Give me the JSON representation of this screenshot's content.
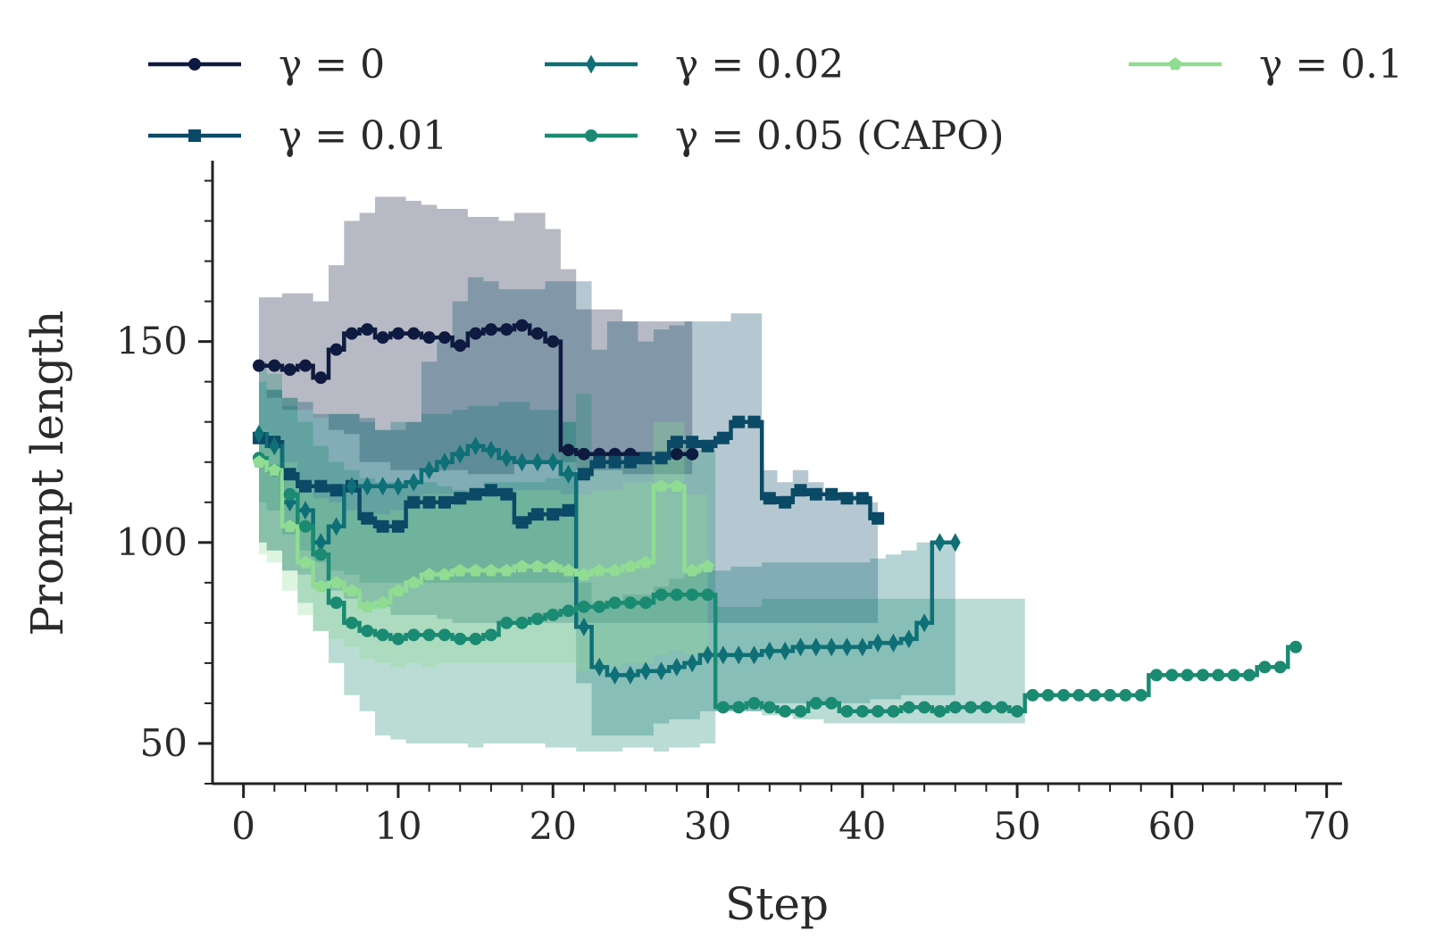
{
  "chart_data": {
    "type": "line",
    "xlabel": "Step",
    "ylabel": "Prompt length",
    "xlim": [
      -2,
      71
    ],
    "ylim": [
      40,
      195
    ],
    "xticks": [
      0,
      10,
      20,
      30,
      40,
      50,
      60,
      70
    ],
    "yticks": [
      50,
      100,
      150
    ],
    "grid": false,
    "legend_position": "top",
    "series": [
      {
        "name": "γ = 0",
        "color": "#0f1a40",
        "marker": "circle",
        "x": [
          1,
          2,
          3,
          4,
          5,
          6,
          7,
          8,
          9,
          10,
          11,
          12,
          13,
          14,
          15,
          16,
          17,
          18,
          19,
          20,
          21,
          22,
          23,
          24,
          25,
          26,
          27,
          28,
          29
        ],
        "y": [
          144,
          144,
          143,
          144,
          141,
          148,
          152,
          153,
          151,
          152,
          152,
          151,
          151,
          149,
          152,
          153,
          153,
          154,
          152,
          150,
          123,
          122,
          122,
          122,
          122,
          121,
          121,
          122,
          122
        ],
        "lower": [
          140,
          136,
          133,
          133,
          131,
          128,
          127,
          120,
          120,
          118,
          118,
          118,
          118,
          118,
          117,
          117,
          117,
          120,
          120,
          120,
          120,
          118,
          118,
          118,
          117,
          117,
          117,
          117,
          117
        ],
        "upper": [
          161,
          161,
          162,
          162,
          160,
          169,
          180,
          182,
          186,
          186,
          185,
          184,
          183,
          183,
          181,
          181,
          180,
          182,
          182,
          178,
          168,
          158,
          158,
          158,
          155,
          155,
          155,
          155,
          155
        ]
      },
      {
        "name": "γ = 0.01",
        "color": "#0b4a66",
        "marker": "square",
        "x": [
          1,
          2,
          3,
          4,
          5,
          6,
          7,
          8,
          9,
          10,
          11,
          12,
          13,
          14,
          15,
          16,
          17,
          18,
          19,
          20,
          21,
          22,
          23,
          24,
          25,
          26,
          27,
          28,
          29,
          30,
          31,
          32,
          33,
          34,
          35,
          36,
          37,
          38,
          39,
          40,
          41
        ],
        "y": [
          126,
          125,
          117,
          114,
          114,
          113,
          114,
          106,
          104,
          104,
          110,
          110,
          110,
          111,
          112,
          113,
          112,
          105,
          107,
          107,
          108,
          117,
          120,
          120,
          120,
          121,
          121,
          125,
          125,
          124,
          126,
          130,
          130,
          111,
          110,
          113,
          112,
          112,
          111,
          111,
          106
        ],
        "lower": [
          100,
          98,
          93,
          92,
          90,
          88,
          86,
          85,
          84,
          82,
          82,
          82,
          81,
          80,
          80,
          80,
          80,
          80,
          80,
          80,
          80,
          80,
          80,
          80,
          80,
          80,
          80,
          80,
          80,
          80,
          80,
          80,
          80,
          80,
          80,
          80,
          80,
          80,
          80,
          80,
          80
        ],
        "upper": [
          140,
          138,
          136,
          135,
          132,
          132,
          132,
          131,
          128,
          128,
          130,
          145,
          150,
          160,
          166,
          165,
          163,
          163,
          163,
          165,
          165,
          165,
          148,
          155,
          155,
          150,
          153,
          154,
          155,
          155,
          155,
          157,
          157,
          118,
          115,
          118,
          115,
          112,
          112,
          112,
          110
        ]
      },
      {
        "name": "γ = 0.02",
        "color": "#0e6f77",
        "marker": "diamond",
        "x": [
          1,
          2,
          3,
          4,
          5,
          6,
          7,
          8,
          9,
          10,
          11,
          12,
          13,
          14,
          15,
          16,
          17,
          18,
          19,
          20,
          21,
          22,
          23,
          24,
          25,
          26,
          27,
          28,
          29,
          30,
          31,
          32,
          33,
          34,
          35,
          36,
          37,
          38,
          39,
          40,
          41,
          42,
          43,
          44,
          45,
          46
        ],
        "y": [
          127,
          124,
          110,
          108,
          100,
          104,
          114,
          114,
          114,
          114,
          115,
          118,
          120,
          122,
          124,
          123,
          121,
          120,
          120,
          120,
          117,
          79,
          69,
          67,
          67,
          68,
          68,
          69,
          70,
          72,
          72,
          72,
          72,
          73,
          73,
          74,
          74,
          74,
          74,
          74,
          75,
          75,
          76,
          80,
          100,
          100
        ],
        "lower": [
          110,
          108,
          102,
          98,
          95,
          93,
          92,
          90,
          90,
          90,
          90,
          90,
          90,
          90,
          90,
          90,
          90,
          90,
          90,
          90,
          90,
          65,
          52,
          52,
          52,
          52,
          55,
          56,
          56,
          58,
          58,
          58,
          58,
          60,
          60,
          60,
          60,
          60,
          60,
          60,
          61,
          61,
          62,
          62,
          62,
          62
        ],
        "upper": [
          140,
          138,
          134,
          133,
          131,
          132,
          132,
          130,
          128,
          130,
          130,
          132,
          132,
          133,
          134,
          134,
          135,
          135,
          133,
          133,
          130,
          90,
          85,
          85,
          87,
          87,
          89,
          91,
          92,
          93,
          93,
          94,
          94,
          95,
          95,
          95,
          95,
          95,
          95,
          95,
          96,
          97,
          98,
          100,
          100,
          100
        ]
      },
      {
        "name": "γ = 0.05 (CAPO)",
        "color": "#1b8a72",
        "marker": "circle",
        "x": [
          1,
          2,
          3,
          4,
          5,
          6,
          7,
          8,
          9,
          10,
          11,
          12,
          13,
          14,
          15,
          16,
          17,
          18,
          19,
          20,
          21,
          22,
          23,
          24,
          25,
          26,
          27,
          28,
          29,
          30,
          31,
          32,
          33,
          34,
          35,
          36,
          37,
          38,
          39,
          40,
          41,
          42,
          43,
          44,
          45,
          46,
          47,
          48,
          49,
          50,
          51,
          52,
          53,
          54,
          55,
          56,
          57,
          58,
          59,
          60,
          61,
          62,
          63,
          64,
          65,
          66,
          67,
          68
        ],
        "y": [
          121,
          118,
          112,
          104,
          97,
          85,
          80,
          78,
          77,
          76,
          77,
          77,
          77,
          76,
          76,
          77,
          80,
          80,
          81,
          82,
          83,
          84,
          84,
          85,
          85,
          85,
          87,
          87,
          87,
          87,
          59,
          59,
          60,
          59,
          58,
          58,
          60,
          60,
          58,
          58,
          58,
          58,
          59,
          59,
          58,
          59,
          59,
          59,
          59,
          58,
          62,
          62,
          62,
          62,
          62,
          62,
          62,
          62,
          67,
          67,
          67,
          67,
          67,
          67,
          67,
          69,
          69,
          74
        ],
        "lower": [
          100,
          98,
          93,
          85,
          78,
          70,
          62,
          58,
          52,
          51,
          50,
          50,
          50,
          50,
          49,
          50,
          50,
          50,
          50,
          49,
          49,
          48,
          48,
          48,
          49,
          49,
          48,
          49,
          49,
          50,
          58,
          58,
          58,
          57,
          57,
          56,
          56,
          55,
          55,
          55,
          55,
          55,
          55,
          55,
          55,
          55,
          55,
          55,
          55,
          55,
          62,
          62,
          62,
          62,
          62,
          62,
          62,
          62,
          67,
          67,
          67,
          67,
          67,
          67,
          67,
          69,
          69,
          74
        ],
        "upper": [
          145,
          142,
          136,
          130,
          124,
          120,
          118,
          116,
          115,
          115,
          115,
          115,
          114,
          113,
          112,
          115,
          115,
          115,
          115,
          116,
          130,
          137,
          120,
          120,
          120,
          120,
          123,
          123,
          123,
          123,
          84,
          84,
          84,
          86,
          86,
          86,
          86,
          86,
          86,
          86,
          86,
          86,
          86,
          86,
          86,
          86,
          86,
          86,
          86,
          86,
          62,
          62,
          62,
          62,
          62,
          62,
          62,
          62,
          67,
          67,
          67,
          67,
          67,
          67,
          67,
          69,
          69,
          74
        ]
      },
      {
        "name": "γ = 0.1",
        "color": "#8fdc92",
        "marker": "pentagon",
        "x": [
          1,
          2,
          3,
          4,
          5,
          6,
          7,
          8,
          9,
          10,
          11,
          12,
          13,
          14,
          15,
          16,
          17,
          18,
          19,
          20,
          21,
          22,
          23,
          24,
          25,
          26,
          27,
          28,
          29,
          30
        ],
        "y": [
          120,
          118,
          104,
          95,
          89,
          90,
          88,
          84,
          85,
          88,
          90,
          92,
          92,
          93,
          93,
          93,
          93,
          94,
          94,
          94,
          93,
          92,
          93,
          93,
          94,
          95,
          114,
          114,
          93,
          94
        ],
        "lower": [
          97,
          95,
          88,
          82,
          78,
          76,
          74,
          71,
          70,
          69,
          70,
          69,
          70,
          70,
          70,
          70,
          70,
          70,
          70,
          70,
          70,
          68,
          69,
          69,
          70,
          70,
          72,
          73,
          72,
          72
        ],
        "upper": [
          128,
          124,
          120,
          114,
          111,
          110,
          108,
          107,
          107,
          108,
          110,
          112,
          112,
          112,
          112,
          112,
          112,
          113,
          113,
          113,
          112,
          112,
          113,
          113,
          115,
          115,
          130,
          130,
          112,
          112
        ]
      }
    ]
  }
}
